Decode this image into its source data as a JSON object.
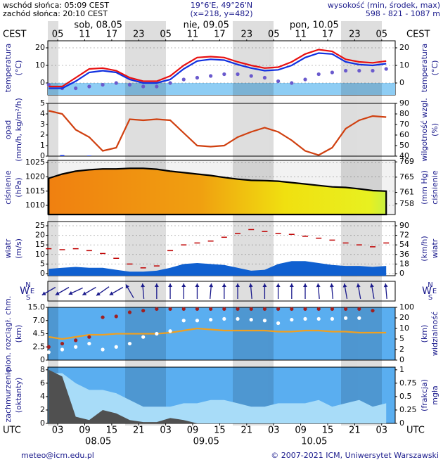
{
  "header": {
    "sunrise": "wschód słońca: 05:09 CEST",
    "sunset": "zachód słońca: 20:10 CEST",
    "coords": "19°6'E, 49°26'N",
    "grid": "(x=218, y=482)",
    "elevation_label": "wysokość (min, środek, max)",
    "elevation": "598 - 821 - 1087 m"
  },
  "time": {
    "xlim": [
      0.8,
      78
    ],
    "top_label": "CEST",
    "bottom_label": "UTC",
    "cest_ticks": [
      {
        "value": 3,
        "label": "05"
      },
      {
        "value": 9,
        "label": "11"
      },
      {
        "value": 15,
        "label": "17"
      },
      {
        "value": 21,
        "label": "23"
      },
      {
        "value": 27,
        "label": "05"
      },
      {
        "value": 33,
        "label": "11"
      },
      {
        "value": 39,
        "label": "17"
      },
      {
        "value": 45,
        "label": "23"
      },
      {
        "value": 51,
        "label": "05"
      },
      {
        "value": 57,
        "label": "11"
      },
      {
        "value": 63,
        "label": "17"
      },
      {
        "value": 69,
        "label": "23"
      },
      {
        "value": 75,
        "label": "05"
      }
    ],
    "utc_ticks": [
      {
        "value": 3,
        "label": "03"
      },
      {
        "value": 9,
        "label": "09"
      },
      {
        "value": 15,
        "label": "15"
      },
      {
        "value": 21,
        "label": "21"
      },
      {
        "value": 27,
        "label": "03"
      },
      {
        "value": 33,
        "label": "09"
      },
      {
        "value": 39,
        "label": "15"
      },
      {
        "value": 45,
        "label": "21"
      },
      {
        "value": 51,
        "label": "03"
      },
      {
        "value": 57,
        "label": "09"
      },
      {
        "value": 63,
        "label": "15"
      },
      {
        "value": 69,
        "label": "21"
      },
      {
        "value": 75,
        "label": "03"
      }
    ],
    "top_dates": [
      {
        "value": 12,
        "label": "sob, 08.05"
      },
      {
        "value": 36,
        "label": "nie, 09.05"
      },
      {
        "value": 60,
        "label": "pon, 10.05"
      }
    ],
    "bottom_dates": [
      {
        "value": 12,
        "label": "08.05"
      },
      {
        "value": 36,
        "label": "09.05"
      },
      {
        "value": 60,
        "label": "10.05"
      }
    ]
  },
  "chart_data": [
    {
      "type": "line",
      "ylabel": [
        "temperatura",
        "(°C)"
      ],
      "y2label": [
        "temperatura",
        "(°C)"
      ],
      "x": [
        1,
        4,
        7,
        10,
        13,
        16,
        19,
        22,
        25,
        28,
        31,
        34,
        37,
        40,
        43,
        46,
        49,
        52,
        55,
        58,
        61,
        64,
        67,
        70,
        73,
        76
      ],
      "ylim": [
        -6.8,
        24
      ],
      "yticks": [
        0,
        10,
        20
      ],
      "y2lim": [
        -6.8,
        24
      ],
      "y2ticks": [
        0,
        10,
        20
      ],
      "grid": true,
      "series": [
        {
          "type": "dots",
          "color": "#6a5acd",
          "values": [
            -1,
            -3,
            -3,
            -2,
            -1,
            0,
            -1,
            -2,
            -2,
            0,
            2,
            3,
            4,
            5,
            5,
            4,
            3,
            1,
            0,
            2,
            5,
            6,
            7,
            7,
            7,
            8
          ]
        },
        {
          "type": "line",
          "color": "#1030e0",
          "values": [
            -3,
            -3,
            1,
            6,
            7,
            6,
            2,
            0,
            0,
            2,
            8,
            12.5,
            13.5,
            13,
            10.5,
            8.5,
            7,
            7.5,
            10,
            14.5,
            17,
            16.5,
            12,
            10.5,
            10,
            11
          ]
        },
        {
          "type": "line",
          "color": "#e81010",
          "values": [
            -2,
            -2,
            3,
            8,
            8.5,
            7,
            3,
            1,
            1,
            4,
            10,
            14.5,
            15,
            14.5,
            12,
            10,
            8.5,
            9,
            12,
            16.5,
            19,
            18,
            13.5,
            12,
            11.5,
            12.5
          ]
        }
      ]
    },
    {
      "type": "line",
      "ylabel": [
        "opad",
        "(mm/h, kg/m²/h)"
      ],
      "y2label": [
        "wilgotność wzgl.",
        "(%)"
      ],
      "x": [
        1,
        4,
        7,
        10,
        13,
        16,
        19,
        22,
        25,
        28,
        31,
        34,
        37,
        40,
        43,
        46,
        49,
        52,
        55,
        58,
        61,
        64,
        67,
        70,
        73,
        76
      ],
      "ylim": [
        0,
        5
      ],
      "yticks": [
        0,
        1,
        2,
        3,
        4,
        5
      ],
      "y2lim": [
        40,
        90
      ],
      "y2ticks": [
        40,
        50,
        60,
        70,
        80,
        90
      ],
      "grid": false,
      "series": [
        {
          "type": "bar",
          "color": "#1030e0",
          "values": [
            0,
            0.1,
            0,
            0.05,
            0,
            0,
            0,
            0,
            0,
            0,
            0,
            0,
            0,
            0,
            0,
            0,
            0,
            0,
            0,
            0,
            0,
            0,
            0,
            0,
            0,
            0
          ]
        },
        {
          "type": "line",
          "axis": "y2",
          "color": "#d04010",
          "values": [
            83,
            80,
            65,
            58,
            45,
            48,
            75,
            74,
            75,
            74,
            62,
            50,
            49,
            50,
            58,
            63,
            67,
            63,
            55,
            45,
            41,
            48,
            66,
            74,
            78,
            77
          ]
        }
      ]
    },
    {
      "type": "line",
      "ylabel": [
        "ciśnienie",
        "(hPa)"
      ],
      "y2label": [
        "(mm Hg)",
        "ciśnienie"
      ],
      "x": [
        1,
        4,
        7,
        10,
        13,
        16,
        19,
        22,
        25,
        28,
        31,
        34,
        37,
        40,
        43,
        46,
        49,
        52,
        55,
        58,
        61,
        64,
        67,
        70,
        73,
        76
      ],
      "ylim": [
        1006.8,
        1025.8
      ],
      "yticks": [
        1010,
        1015,
        1020,
        1025
      ],
      "y2lim": [
        755.2,
        769.4
      ],
      "y2ticks": [
        758,
        761,
        765,
        769
      ],
      "grid": true,
      "series": [
        {
          "type": "area",
          "color": "#000000",
          "values": [
            1019.5,
            1021,
            1022,
            1022.5,
            1022.8,
            1022.8,
            1023,
            1023,
            1022.7,
            1022,
            1021.5,
            1021,
            1020.5,
            1019.8,
            1019.2,
            1018.8,
            1018.7,
            1018.5,
            1018,
            1017.5,
            1017,
            1016.5,
            1016.3,
            1015.8,
            1015.2,
            1015
          ]
        }
      ]
    },
    {
      "type": "line",
      "ylabel": [
        "wiatr",
        "(m/s)"
      ],
      "y2label": [
        "(km/h)",
        "wiatr"
      ],
      "x": [
        1,
        4,
        7,
        10,
        13,
        16,
        19,
        22,
        25,
        28,
        31,
        34,
        37,
        40,
        43,
        46,
        49,
        52,
        55,
        58,
        61,
        64,
        67,
        70,
        73,
        76
      ],
      "ylim": [
        -1.1,
        27.2
      ],
      "yticks": [
        0,
        5,
        10,
        15,
        20,
        25
      ],
      "y2lim": [
        -3.96,
        97.9
      ],
      "y2ticks": [
        0,
        18,
        36,
        54,
        72,
        90
      ],
      "grid": true,
      "series": [
        {
          "type": "area",
          "color": "#1060d0",
          "values": [
            2.5,
            3,
            3.5,
            3,
            3,
            2,
            1,
            1,
            1.5,
            3,
            5,
            5.5,
            5,
            4.5,
            3,
            1.5,
            2,
            5,
            6.5,
            6.5,
            5.5,
            4.5,
            4,
            4,
            3.5,
            4
          ]
        },
        {
          "type": "dash",
          "color": "#c00000",
          "values": [
            13,
            12.5,
            13,
            12,
            10.5,
            8,
            5,
            3,
            4,
            12,
            15,
            16,
            17,
            19,
            21,
            23,
            22,
            21,
            20.5,
            19.5,
            18.5,
            17.5,
            16,
            15,
            14,
            16
          ]
        }
      ]
    },
    {
      "type": "quiver",
      "left_labels": [
        "N",
        "W",
        "S",
        "E"
      ],
      "right_labels": [
        "N",
        "W",
        "S",
        "E"
      ],
      "x": [
        1,
        4,
        7,
        10,
        13,
        16,
        19,
        22,
        25,
        28,
        31,
        34,
        37,
        40,
        43,
        46,
        49,
        52,
        55,
        58,
        61,
        64,
        67,
        70,
        73,
        76
      ],
      "values": [
        60,
        60,
        65,
        60,
        55,
        60,
        150,
        175,
        180,
        180,
        180,
        180,
        185,
        180,
        180,
        175,
        180,
        180,
        180,
        180,
        175,
        175,
        170,
        170,
        170,
        175
      ],
      "color": "#1a1a8c"
    },
    {
      "type": "line",
      "ylabel": [
        "pion. rozciągł. chm.",
        "(km)"
      ],
      "y2label": [
        "(km)",
        "widzialność"
      ],
      "x": [
        1,
        4,
        7,
        10,
        13,
        16,
        19,
        22,
        25,
        28,
        31,
        34,
        37,
        40,
        43,
        46,
        49,
        52,
        55,
        58,
        61,
        64,
        67,
        70,
        73,
        76
      ],
      "yscale": "piecewise",
      "ylim": [
        0,
        15
      ],
      "yticks": [
        0,
        2.5,
        4.5,
        {
          "value": 7,
          "label": "7.0"
        },
        {
          "value": 15,
          "label": "15.0"
        }
      ],
      "y2lim": [
        0,
        100
      ],
      "y2ticks": [
        0,
        2,
        5,
        10,
        20,
        100
      ],
      "grid": false,
      "series": [
        {
          "type": "line",
          "axis": "y2",
          "color": "#f0a020",
          "values": [
            6,
            5,
            6,
            7,
            7,
            7.5,
            7.5,
            7.5,
            7.5,
            8,
            9,
            10,
            9.5,
            9,
            9,
            9,
            9,
            8.5,
            8.5,
            9,
            9,
            8.5,
            8.5,
            8,
            8,
            8
          ]
        },
        {
          "type": "dots",
          "color": "#ffffff",
          "values": [
            1.5,
            2,
            2.5,
            3,
            2,
            2.5,
            3,
            4,
            4.5,
            5,
            7,
            7,
            7.5,
            8,
            8,
            7.5,
            7,
            6.5,
            7.5,
            8,
            8,
            8,
            8.5,
            8.5,
            null,
            null
          ]
        },
        {
          "type": "dots",
          "color": "#a02020",
          "values": [
            2.5,
            3,
            3.5,
            4,
            9,
            9.5,
            12,
            13,
            14,
            14,
            14,
            14,
            14,
            14,
            14,
            14,
            14,
            14,
            14,
            14,
            14,
            14,
            14,
            14,
            13,
            null
          ]
        }
      ]
    },
    {
      "type": "line",
      "ylabel": [
        "zachmurzenie",
        "(oktanty)"
      ],
      "y2label": [
        "(frakcja)",
        "mgła"
      ],
      "x": [
        1,
        4,
        7,
        10,
        13,
        16,
        19,
        22,
        25,
        28,
        31,
        34,
        37,
        40,
        43,
        46,
        49,
        52,
        55,
        58,
        61,
        64,
        67,
        70,
        73,
        76
      ],
      "ylim": [
        0,
        8.4
      ],
      "yticks": [
        0,
        2,
        4,
        6,
        8
      ],
      "y2lim": [
        0,
        1.05
      ],
      "y2ticks": [
        0,
        0.25,
        0.5,
        0.75,
        1
      ],
      "grid": false,
      "series": [
        {
          "type": "area",
          "color": "#a8dcf8",
          "values": [
            7.5,
            7.5,
            6,
            5,
            5,
            4.5,
            3.5,
            2.5,
            2.5,
            2.5,
            3,
            3,
            3.5,
            3.5,
            3,
            2.5,
            2.5,
            3,
            3,
            3,
            3.5,
            2.5,
            3,
            3.5,
            2.5,
            3
          ]
        },
        {
          "type": "area",
          "color": "#505050",
          "values": [
            8,
            7,
            1,
            0.5,
            2,
            1.5,
            0.5,
            0.2,
            0.2,
            0.8,
            0.5,
            0,
            0,
            0,
            0,
            0,
            0,
            0,
            0,
            0,
            0,
            0,
            0,
            0,
            0,
            0
          ]
        }
      ]
    }
  ],
  "footer": {
    "email": "meteo@icm.edu.pl",
    "copyright": "© 2007-2021 ICM, Uniwersytet Warszawski"
  }
}
